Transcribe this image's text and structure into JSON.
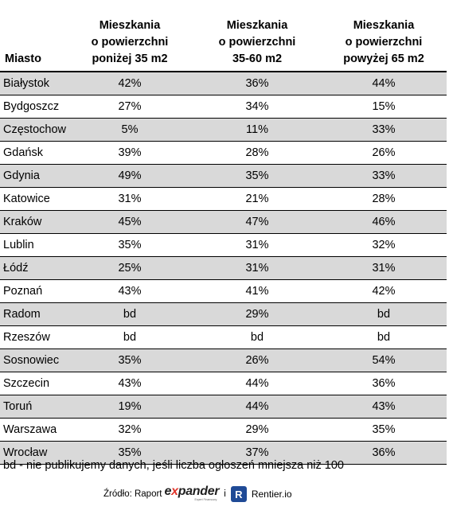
{
  "table": {
    "headers": {
      "city": "Miasto",
      "col_a": [
        "Mieszkania",
        "o powierzchni",
        "poniżej 35 m2"
      ],
      "col_b": [
        "Mieszkania",
        "o powierzchni",
        "35-60 m2"
      ],
      "col_c": [
        "Mieszkania",
        "o powierzchni",
        "powyżej 65 m2"
      ]
    },
    "rows": [
      {
        "city": "Białystok",
        "a": "42%",
        "b": "36%",
        "c": "44%"
      },
      {
        "city": "Bydgoszcz",
        "a": "27%",
        "b": "34%",
        "c": "15%"
      },
      {
        "city": "Częstochowa",
        "a": "5%",
        "b": "11%",
        "c": "33%"
      },
      {
        "city": "Gdańsk",
        "a": "39%",
        "b": "28%",
        "c": "26%"
      },
      {
        "city": "Gdynia",
        "a": "49%",
        "b": "35%",
        "c": "33%"
      },
      {
        "city": "Katowice",
        "a": "31%",
        "b": "21%",
        "c": "28%"
      },
      {
        "city": "Kraków",
        "a": "45%",
        "b": "47%",
        "c": "46%"
      },
      {
        "city": "Lublin",
        "a": "35%",
        "b": "31%",
        "c": "32%"
      },
      {
        "city": "Łódź",
        "a": "25%",
        "b": "31%",
        "c": "31%"
      },
      {
        "city": "Poznań",
        "a": "43%",
        "b": "41%",
        "c": "42%"
      },
      {
        "city": "Radom",
        "a": "bd",
        "b": "29%",
        "c": "bd"
      },
      {
        "city": "Rzeszów",
        "a": "bd",
        "b": "bd",
        "c": "bd"
      },
      {
        "city": "Sosnowiec",
        "a": "35%",
        "b": "26%",
        "c": "54%"
      },
      {
        "city": "Szczecin",
        "a": "43%",
        "b": "44%",
        "c": "36%"
      },
      {
        "city": "Toruń",
        "a": "19%",
        "b": "44%",
        "c": "43%"
      },
      {
        "city": "Warszawa",
        "a": "32%",
        "b": "29%",
        "c": "35%"
      },
      {
        "city": "Wrocław",
        "a": "35%",
        "b": "37%",
        "c": "36%"
      }
    ],
    "row_stripe_color": "#d9d9d9"
  },
  "footnote": "bd - nie publikujemy danych, jeśli liczba ogłoszeń mniejsza niż 100",
  "source": {
    "label": "Źródło: Raport",
    "logo_expander": {
      "e": "e",
      "x": "x",
      "rest": "pander",
      "tagline": "Expert Finansowy",
      "x_color": "#e0352b"
    },
    "conjunction": "i",
    "rentier_icon_letter": "R",
    "rentier_icon_color": "#1f4a96",
    "rentier_name": "Rentier.io"
  }
}
